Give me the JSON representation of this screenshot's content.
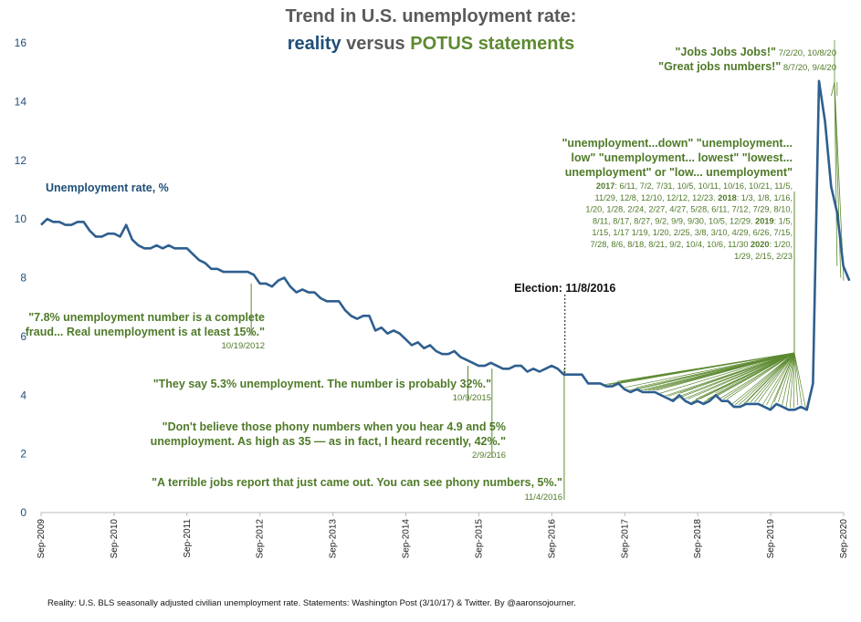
{
  "chart_data": {
    "type": "line",
    "title_line1": "Trend in U.S. unemployment rate:",
    "title_reality": "reality",
    "title_versus": " versus ",
    "title_potus": "POTUS statements",
    "ylabel": "Unemployment rate, %",
    "ylim": [
      0,
      16
    ],
    "yticks": [
      0,
      2,
      4,
      6,
      8,
      10,
      12,
      14,
      16
    ],
    "xlim": [
      2009.67,
      2020.67
    ],
    "xticks": [
      {
        "label": "Sep-2009",
        "x": 2009.67
      },
      {
        "label": "Sep-2010",
        "x": 2010.67
      },
      {
        "label": "Sep-2011",
        "x": 2011.67
      },
      {
        "label": "Sep-2012",
        "x": 2012.67
      },
      {
        "label": "Sep-2013",
        "x": 2013.67
      },
      {
        "label": "Sep-2014",
        "x": 2014.67
      },
      {
        "label": "Sep-2015",
        "x": 2015.67
      },
      {
        "label": "Sep-2016",
        "x": 2016.67
      },
      {
        "label": "Sep-2017",
        "x": 2017.67
      },
      {
        "label": "Sep-2018",
        "x": 2018.67
      },
      {
        "label": "Sep-2019",
        "x": 2019.67
      },
      {
        "label": "Sep-2020",
        "x": 2020.67
      }
    ],
    "series": [
      {
        "name": "Unemployment rate",
        "color": "#2e5f8f",
        "start": 2009.67,
        "step": 0.0833,
        "values": [
          9.8,
          10.0,
          9.9,
          9.9,
          9.8,
          9.8,
          9.9,
          9.9,
          9.6,
          9.4,
          9.4,
          9.5,
          9.5,
          9.4,
          9.8,
          9.3,
          9.1,
          9.0,
          9.0,
          9.1,
          9.0,
          9.1,
          9.0,
          9.0,
          9.0,
          8.8,
          8.6,
          8.5,
          8.3,
          8.3,
          8.2,
          8.2,
          8.2,
          8.2,
          8.2,
          8.1,
          7.8,
          7.8,
          7.7,
          7.9,
          8.0,
          7.7,
          7.5,
          7.6,
          7.5,
          7.5,
          7.3,
          7.2,
          7.2,
          7.2,
          6.9,
          6.7,
          6.6,
          6.7,
          6.7,
          6.2,
          6.3,
          6.1,
          6.2,
          6.1,
          5.9,
          5.7,
          5.8,
          5.6,
          5.7,
          5.5,
          5.4,
          5.4,
          5.5,
          5.3,
          5.2,
          5.1,
          5.0,
          5.0,
          5.1,
          5.0,
          4.9,
          4.9,
          5.0,
          5.0,
          4.8,
          4.9,
          4.8,
          4.9,
          5.0,
          4.9,
          4.7,
          4.7,
          4.7,
          4.7,
          4.4,
          4.4,
          4.4,
          4.3,
          4.3,
          4.4,
          4.2,
          4.1,
          4.2,
          4.1,
          4.1,
          4.1,
          4.0,
          3.9,
          3.8,
          4.0,
          3.8,
          3.7,
          3.8,
          3.7,
          3.8,
          4.0,
          3.8,
          3.8,
          3.6,
          3.6,
          3.7,
          3.7,
          3.7,
          3.6,
          3.5,
          3.7,
          3.6,
          3.5,
          3.5,
          3.6,
          3.5,
          4.4,
          14.7,
          13.3,
          11.1,
          10.2,
          8.4,
          7.9
        ]
      }
    ],
    "election": {
      "label": "Election: 11/8/2016",
      "x": 2016.85
    },
    "annotations": [
      {
        "lines": [
          "\"7.8% unemployment number is a complete",
          "fraud... Real unemployment is at least 15%.\""
        ],
        "date": "10/19/2012"
      },
      {
        "lines": [
          "\"They say 5.3% unemployment. The number is probably 32%.\""
        ],
        "date": "10/9/2015"
      },
      {
        "lines": [
          "\"Don't believe those phony numbers when you hear 4.9 and 5%",
          "unemployment. As high as 35 — as in fact, I heard recently, 42%.\""
        ],
        "date": "2/9/2016"
      },
      {
        "lines": [
          "\"A terrible jobs report that just came out. You can see phony numbers, 5%.\""
        ],
        "date": "11/4/2016"
      }
    ],
    "potus_good": {
      "lines": [
        "\"unemployment...down\" \"unemployment...",
        "low\" \"unemployment... lowest\" \"lowest...",
        "unemployment\" or \"low... unemployment\""
      ],
      "date_lines": [
        [
          [
            "2017",
            true
          ],
          [
            ": 6/11, 7/2, 7/31, 10/5, 10/11, 10/16, 10/21, 11/5,",
            false
          ]
        ],
        [
          [
            "11/29,  12/8, 12/10, 12/12, 12/23. ",
            false
          ],
          [
            "2018",
            true
          ],
          [
            ": 1/3, 1/8, 1/16,",
            false
          ]
        ],
        [
          [
            "1/20, 1/28, 2/24, 2/27, 4/27, 5/28, 6/11, 7/12, 7/29,  8/10,",
            false
          ]
        ],
        [
          [
            "8/11, 8/17, 8/27, 9/2, 9/9, 9/30, 10/5, 12/29. ",
            false
          ],
          [
            "2019",
            true
          ],
          [
            ": 1/5,",
            false
          ]
        ],
        [
          [
            "1/15, 1/17 1/19, 1/20, 2/25, 3/8, 3/10, 4/29, 6/26, 7/15,",
            false
          ]
        ],
        [
          [
            "7/28, 8/6, 8/18, 8/21, 9/2, 10/4, 10/6, 11/30 ",
            false
          ],
          [
            "2020",
            true
          ],
          [
            ":  1/20,",
            false
          ]
        ],
        [
          [
            "1/29,  2/15, 2/23",
            false
          ]
        ]
      ]
    },
    "jobs_quotes": [
      {
        "text": "\"Jobs Jobs Jobs!\"",
        "date": " 7/2/20, 10/8/20"
      },
      {
        "text": "\"Great jobs numbers!\"",
        "date": " 8/7/20, 9/4/20"
      }
    ],
    "source": "Reality: U.S. BLS seasonally adjusted civilian unemployment rate. Statements: Washington Post (3/10/17) & Twitter. By @aaronsojourner.",
    "colors": {
      "reality": "#1f4e79",
      "potus": "#5d8a31",
      "line": "#2e5f8f",
      "annotation": "#4f7a28",
      "title": "#5a5a5a"
    }
  }
}
